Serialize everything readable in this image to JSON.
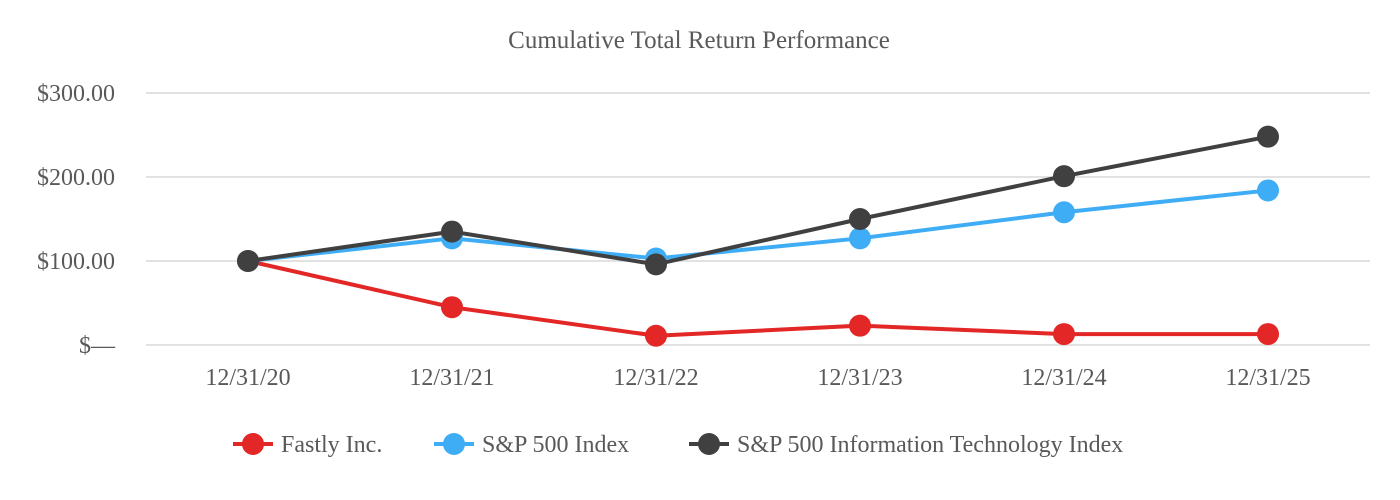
{
  "chart_data": {
    "type": "line",
    "title": "Cumulative Total Return Performance",
    "xlabel": "",
    "ylabel": "",
    "categories": [
      "12/31/20",
      "12/31/21",
      "12/31/22",
      "12/31/23",
      "12/31/24",
      "12/31/25"
    ],
    "ylim": [
      0,
      300
    ],
    "yticks": [
      0,
      100,
      200,
      300
    ],
    "ytick_labels": [
      "$—",
      "$100.00",
      "$200.00",
      "$300.00"
    ],
    "grid": true,
    "legend": "bottom",
    "series": [
      {
        "name": "Fastly Inc.",
        "color": "#e32626",
        "values": [
          100,
          45,
          11,
          23,
          13,
          13
        ]
      },
      {
        "name": "S&P 500 Index",
        "color": "#3fadf5",
        "values": [
          100,
          127,
          103,
          127,
          158,
          184
        ]
      },
      {
        "name": "S&P 500 Information Technology Index",
        "color": "#404040",
        "values": [
          100,
          135,
          96,
          150,
          201,
          248
        ]
      }
    ]
  }
}
